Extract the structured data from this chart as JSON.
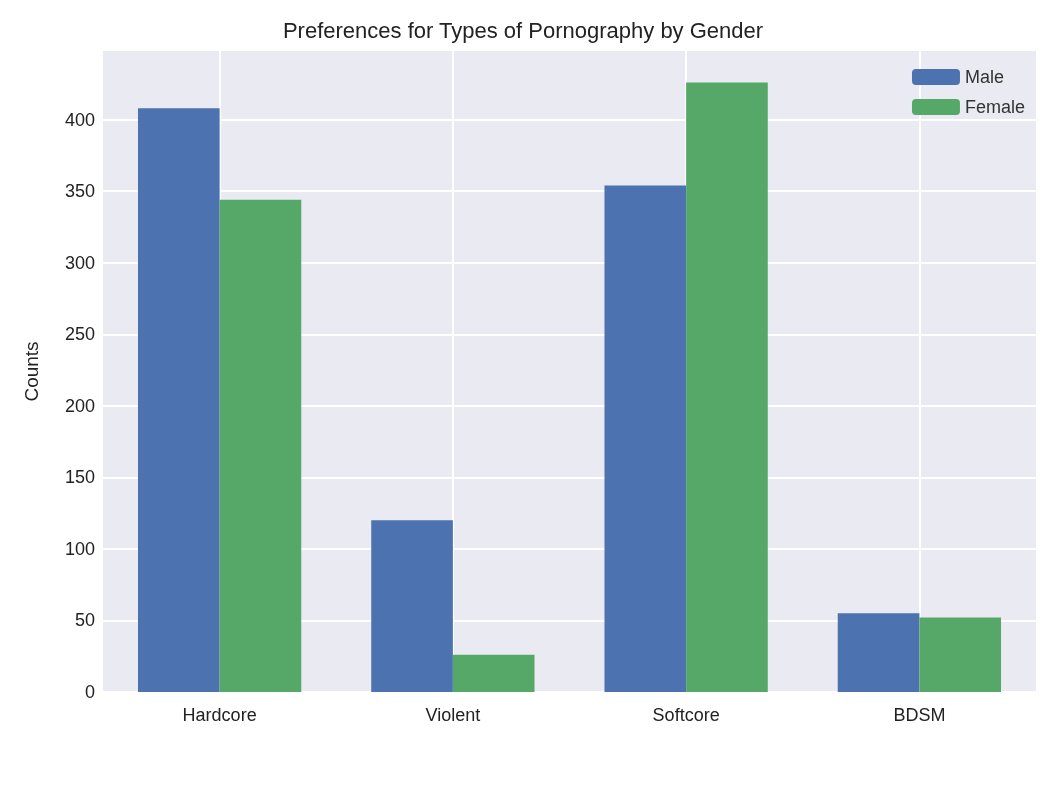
{
  "chart_data": {
    "type": "bar",
    "title": "Preferences for Types of Pornography by Gender",
    "ylabel": "Counts",
    "categories": [
      "Hardcore",
      "Violent",
      "Softcore",
      "BDSM"
    ],
    "series": [
      {
        "name": "Male",
        "color": "#4c72b0",
        "values": [
          408,
          120,
          354,
          55
        ]
      },
      {
        "name": "Female",
        "color": "#55a868",
        "values": [
          344,
          26,
          426,
          52
        ]
      }
    ],
    "ylim": [
      0,
      448
    ],
    "yticks": [
      0,
      50,
      100,
      150,
      200,
      250,
      300,
      350,
      400
    ],
    "grid": true,
    "legend": "top right"
  }
}
